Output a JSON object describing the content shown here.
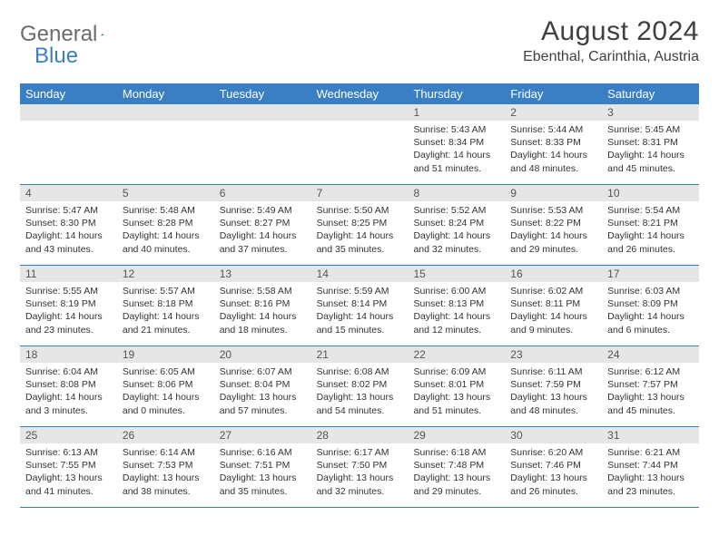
{
  "logo": {
    "word1": "General",
    "word2": "Blue"
  },
  "title": "August 2024",
  "location": "Ebenthal, Carinthia, Austria",
  "colors": {
    "header_bar": "#3a7fc4",
    "daynum_bg": "#e6e6e6",
    "text": "#333333",
    "title_text": "#404040"
  },
  "weekdays": [
    "Sunday",
    "Monday",
    "Tuesday",
    "Wednesday",
    "Thursday",
    "Friday",
    "Saturday"
  ],
  "weeks": [
    [
      {
        "n": "",
        "sr": "",
        "ss": "",
        "dl": ""
      },
      {
        "n": "",
        "sr": "",
        "ss": "",
        "dl": ""
      },
      {
        "n": "",
        "sr": "",
        "ss": "",
        "dl": ""
      },
      {
        "n": "",
        "sr": "",
        "ss": "",
        "dl": ""
      },
      {
        "n": "1",
        "sr": "Sunrise: 5:43 AM",
        "ss": "Sunset: 8:34 PM",
        "dl": "Daylight: 14 hours and 51 minutes."
      },
      {
        "n": "2",
        "sr": "Sunrise: 5:44 AM",
        "ss": "Sunset: 8:33 PM",
        "dl": "Daylight: 14 hours and 48 minutes."
      },
      {
        "n": "3",
        "sr": "Sunrise: 5:45 AM",
        "ss": "Sunset: 8:31 PM",
        "dl": "Daylight: 14 hours and 45 minutes."
      }
    ],
    [
      {
        "n": "4",
        "sr": "Sunrise: 5:47 AM",
        "ss": "Sunset: 8:30 PM",
        "dl": "Daylight: 14 hours and 43 minutes."
      },
      {
        "n": "5",
        "sr": "Sunrise: 5:48 AM",
        "ss": "Sunset: 8:28 PM",
        "dl": "Daylight: 14 hours and 40 minutes."
      },
      {
        "n": "6",
        "sr": "Sunrise: 5:49 AM",
        "ss": "Sunset: 8:27 PM",
        "dl": "Daylight: 14 hours and 37 minutes."
      },
      {
        "n": "7",
        "sr": "Sunrise: 5:50 AM",
        "ss": "Sunset: 8:25 PM",
        "dl": "Daylight: 14 hours and 35 minutes."
      },
      {
        "n": "8",
        "sr": "Sunrise: 5:52 AM",
        "ss": "Sunset: 8:24 PM",
        "dl": "Daylight: 14 hours and 32 minutes."
      },
      {
        "n": "9",
        "sr": "Sunrise: 5:53 AM",
        "ss": "Sunset: 8:22 PM",
        "dl": "Daylight: 14 hours and 29 minutes."
      },
      {
        "n": "10",
        "sr": "Sunrise: 5:54 AM",
        "ss": "Sunset: 8:21 PM",
        "dl": "Daylight: 14 hours and 26 minutes."
      }
    ],
    [
      {
        "n": "11",
        "sr": "Sunrise: 5:55 AM",
        "ss": "Sunset: 8:19 PM",
        "dl": "Daylight: 14 hours and 23 minutes."
      },
      {
        "n": "12",
        "sr": "Sunrise: 5:57 AM",
        "ss": "Sunset: 8:18 PM",
        "dl": "Daylight: 14 hours and 21 minutes."
      },
      {
        "n": "13",
        "sr": "Sunrise: 5:58 AM",
        "ss": "Sunset: 8:16 PM",
        "dl": "Daylight: 14 hours and 18 minutes."
      },
      {
        "n": "14",
        "sr": "Sunrise: 5:59 AM",
        "ss": "Sunset: 8:14 PM",
        "dl": "Daylight: 14 hours and 15 minutes."
      },
      {
        "n": "15",
        "sr": "Sunrise: 6:00 AM",
        "ss": "Sunset: 8:13 PM",
        "dl": "Daylight: 14 hours and 12 minutes."
      },
      {
        "n": "16",
        "sr": "Sunrise: 6:02 AM",
        "ss": "Sunset: 8:11 PM",
        "dl": "Daylight: 14 hours and 9 minutes."
      },
      {
        "n": "17",
        "sr": "Sunrise: 6:03 AM",
        "ss": "Sunset: 8:09 PM",
        "dl": "Daylight: 14 hours and 6 minutes."
      }
    ],
    [
      {
        "n": "18",
        "sr": "Sunrise: 6:04 AM",
        "ss": "Sunset: 8:08 PM",
        "dl": "Daylight: 14 hours and 3 minutes."
      },
      {
        "n": "19",
        "sr": "Sunrise: 6:05 AM",
        "ss": "Sunset: 8:06 PM",
        "dl": "Daylight: 14 hours and 0 minutes."
      },
      {
        "n": "20",
        "sr": "Sunrise: 6:07 AM",
        "ss": "Sunset: 8:04 PM",
        "dl": "Daylight: 13 hours and 57 minutes."
      },
      {
        "n": "21",
        "sr": "Sunrise: 6:08 AM",
        "ss": "Sunset: 8:02 PM",
        "dl": "Daylight: 13 hours and 54 minutes."
      },
      {
        "n": "22",
        "sr": "Sunrise: 6:09 AM",
        "ss": "Sunset: 8:01 PM",
        "dl": "Daylight: 13 hours and 51 minutes."
      },
      {
        "n": "23",
        "sr": "Sunrise: 6:11 AM",
        "ss": "Sunset: 7:59 PM",
        "dl": "Daylight: 13 hours and 48 minutes."
      },
      {
        "n": "24",
        "sr": "Sunrise: 6:12 AM",
        "ss": "Sunset: 7:57 PM",
        "dl": "Daylight: 13 hours and 45 minutes."
      }
    ],
    [
      {
        "n": "25",
        "sr": "Sunrise: 6:13 AM",
        "ss": "Sunset: 7:55 PM",
        "dl": "Daylight: 13 hours and 41 minutes."
      },
      {
        "n": "26",
        "sr": "Sunrise: 6:14 AM",
        "ss": "Sunset: 7:53 PM",
        "dl": "Daylight: 13 hours and 38 minutes."
      },
      {
        "n": "27",
        "sr": "Sunrise: 6:16 AM",
        "ss": "Sunset: 7:51 PM",
        "dl": "Daylight: 13 hours and 35 minutes."
      },
      {
        "n": "28",
        "sr": "Sunrise: 6:17 AM",
        "ss": "Sunset: 7:50 PM",
        "dl": "Daylight: 13 hours and 32 minutes."
      },
      {
        "n": "29",
        "sr": "Sunrise: 6:18 AM",
        "ss": "Sunset: 7:48 PM",
        "dl": "Daylight: 13 hours and 29 minutes."
      },
      {
        "n": "30",
        "sr": "Sunrise: 6:20 AM",
        "ss": "Sunset: 7:46 PM",
        "dl": "Daylight: 13 hours and 26 minutes."
      },
      {
        "n": "31",
        "sr": "Sunrise: 6:21 AM",
        "ss": "Sunset: 7:44 PM",
        "dl": "Daylight: 13 hours and 23 minutes."
      }
    ]
  ]
}
